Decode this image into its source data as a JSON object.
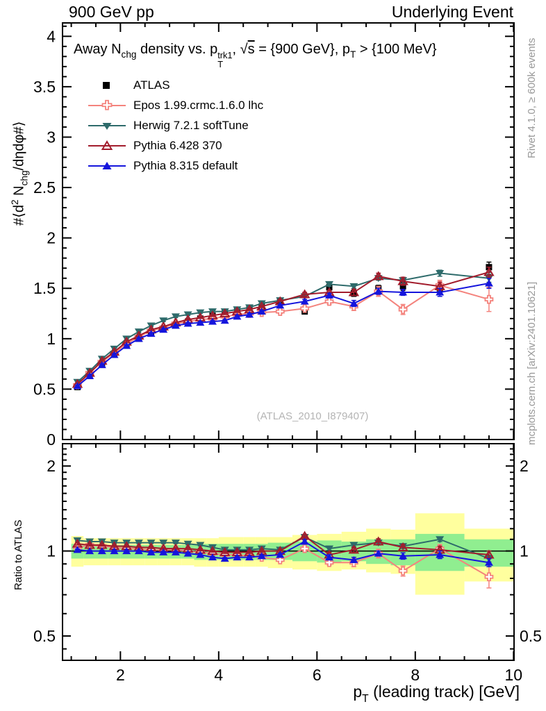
{
  "header": {
    "left": "900 GeV pp",
    "right": "Underlying Event"
  },
  "right_margin": {
    "rivet": "Rivet 4.1.0, ≥ 600k events",
    "mcplots": "mcplots.cern.ch [arXiv:2401.10621]"
  },
  "watermark": "(ATLAS_2010_I879407)",
  "ratio_axis_label": "Ratio to ATLAS",
  "title_segments": [
    {
      "t": "Away N"
    },
    {
      "sub": "chg"
    },
    {
      "t": " density vs. p"
    },
    {
      "stack": [
        "trk1",
        "T"
      ]
    },
    {
      "t": ", "
    },
    {
      "t": "√"
    },
    {
      "over": "s"
    },
    {
      "t": " = {900 GeV}, p"
    },
    {
      "sub": "T"
    },
    {
      "t": " > {100 MeV}"
    }
  ],
  "y_axis_segments": [
    {
      "t": "#⟨d"
    },
    {
      "sup": "2"
    },
    {
      "t": " N"
    },
    {
      "sub": "chg"
    },
    {
      "t": "/dηdφ#⟩"
    }
  ],
  "x_axis_segments": [
    {
      "t": "p"
    },
    {
      "sub": "T"
    },
    {
      "t": " (leading track) [GeV]"
    }
  ],
  "colors": {
    "frame": "#000000",
    "band_yellow": "#ffff9e",
    "band_green": "#90ee90",
    "watermark_gray": "#b4b4b4",
    "margin_gray": "#999999"
  },
  "chart_data": {
    "type": "line",
    "title": "Away Nchg density vs. pT trk1, sqrt(s) = {900 GeV}, pT > {100 MeV}",
    "xlabel": "pT (leading track) [GeV]",
    "ylabel_main": "#<d2 Nchg/detadphi#>",
    "ylabel_ratio": "Ratio to ATLAS",
    "legend_position": "top-left",
    "axes": {
      "x": {
        "min": 0.822,
        "max": 10.01,
        "majors": [
          2,
          4,
          6,
          8,
          10
        ],
        "minor_step": 0.5
      },
      "y_main": {
        "min": 0,
        "max": 4.133,
        "majors": [
          0,
          0.5,
          1,
          1.5,
          2,
          2.5,
          3,
          3.5,
          4
        ],
        "labels": [
          "0",
          "0.5",
          "1",
          "1.5",
          "2",
          "2.5",
          "3",
          "3.5",
          "4"
        ],
        "minor_step": 0.1
      },
      "y_ratio": {
        "scale": "log",
        "min": 0.41,
        "max": 2.4,
        "majors": [
          0.5,
          1,
          2
        ],
        "labels": [
          "0.5",
          "1",
          "2"
        ],
        "minors": [
          0.45,
          0.6,
          0.7,
          0.8,
          0.9,
          1.1,
          1.2,
          1.3,
          1.4,
          1.5,
          1.6,
          1.7,
          1.8,
          1.9,
          2.1,
          2.2,
          2.3
        ]
      }
    },
    "bin_edges": [
      1.0,
      1.25,
      1.5,
      1.75,
      2.0,
      2.25,
      2.5,
      2.75,
      3.0,
      3.25,
      3.5,
      3.75,
      4.0,
      4.25,
      4.5,
      4.75,
      5.0,
      5.5,
      6.0,
      6.5,
      7.0,
      7.5,
      8.0,
      9.0,
      10.0
    ],
    "x": [
      1.125,
      1.375,
      1.625,
      1.875,
      2.125,
      2.375,
      2.625,
      2.875,
      3.125,
      3.375,
      3.625,
      3.875,
      4.125,
      4.375,
      4.625,
      4.875,
      5.25,
      5.75,
      6.25,
      6.75,
      7.25,
      7.75,
      8.5,
      9.5
    ],
    "bands": {
      "yellow_lo": [
        0.88,
        0.89,
        0.89,
        0.89,
        0.89,
        0.89,
        0.89,
        0.89,
        0.89,
        0.89,
        0.88,
        0.88,
        0.88,
        0.88,
        0.88,
        0.88,
        0.87,
        0.86,
        0.85,
        0.86,
        0.84,
        0.83,
        0.7,
        0.78
      ],
      "yellow_hi": [
        1.13,
        1.11,
        1.11,
        1.11,
        1.11,
        1.11,
        1.11,
        1.11,
        1.11,
        1.11,
        1.11,
        1.11,
        1.12,
        1.12,
        1.12,
        1.12,
        1.12,
        1.14,
        1.15,
        1.17,
        1.2,
        1.19,
        1.36,
        1.2
      ],
      "green_lo": [
        0.94,
        0.94,
        0.94,
        0.94,
        0.94,
        0.94,
        0.94,
        0.94,
        0.94,
        0.94,
        0.93,
        0.93,
        0.93,
        0.93,
        0.93,
        0.93,
        0.93,
        0.92,
        0.91,
        0.92,
        0.9,
        0.89,
        0.85,
        0.88
      ],
      "green_hi": [
        1.06,
        1.05,
        1.05,
        1.05,
        1.05,
        1.05,
        1.05,
        1.05,
        1.05,
        1.05,
        1.06,
        1.06,
        1.06,
        1.06,
        1.06,
        1.06,
        1.07,
        1.08,
        1.09,
        1.08,
        1.1,
        1.1,
        1.15,
        1.1
      ]
    },
    "series": [
      {
        "id": "atlas",
        "label": "ATLAS",
        "color": "#000000",
        "marker": "square-filled",
        "line": false,
        "values": [
          0.52,
          0.63,
          0.74,
          0.84,
          0.93,
          1.0,
          1.06,
          1.1,
          1.14,
          1.17,
          1.2,
          1.23,
          1.26,
          1.28,
          1.3,
          1.32,
          1.37,
          1.27,
          1.51,
          1.45,
          1.5,
          1.52,
          1.5,
          1.71
        ],
        "err": [
          0.02,
          0.02,
          0.02,
          0.02,
          0.02,
          0.02,
          0.02,
          0.02,
          0.02,
          0.02,
          0.02,
          0.02,
          0.02,
          0.02,
          0.02,
          0.02,
          0.02,
          0.02,
          0.03,
          0.03,
          0.03,
          0.04,
          0.04,
          0.05
        ]
      },
      {
        "id": "epos",
        "label": "Epos 1.99.crmc.1.6.0 lhc",
        "color": "#f4837d",
        "marker": "cross-open",
        "line": true,
        "values": [
          0.54,
          0.66,
          0.77,
          0.86,
          0.95,
          1.02,
          1.08,
          1.11,
          1.15,
          1.17,
          1.19,
          1.2,
          1.22,
          1.24,
          1.25,
          1.26,
          1.27,
          1.3,
          1.37,
          1.32,
          1.47,
          1.29,
          1.53,
          1.39
        ],
        "err": [
          0.01,
          0.01,
          0.01,
          0.01,
          0.01,
          0.01,
          0.01,
          0.01,
          0.01,
          0.01,
          0.01,
          0.01,
          0.01,
          0.01,
          0.01,
          0.01,
          0.02,
          0.02,
          0.03,
          0.04,
          0.05,
          0.05,
          0.05,
          0.12
        ],
        "ratio": [
          1.03,
          1.05,
          1.04,
          1.03,
          1.02,
          1.02,
          1.01,
          1.01,
          1.01,
          1.0,
          0.99,
          0.98,
          0.97,
          0.97,
          0.96,
          0.95,
          0.93,
          1.02,
          0.91,
          0.91,
          0.98,
          0.85,
          1.02,
          0.81
        ],
        "ratio_err": [
          0.01,
          0.01,
          0.01,
          0.01,
          0.01,
          0.01,
          0.01,
          0.01,
          0.01,
          0.01,
          0.01,
          0.01,
          0.01,
          0.01,
          0.01,
          0.01,
          0.015,
          0.02,
          0.02,
          0.03,
          0.035,
          0.035,
          0.035,
          0.07
        ]
      },
      {
        "id": "herwig",
        "label": "Herwig 7.2.1 softTune",
        "color": "#2e6b6b",
        "marker": "triangle-down-filled",
        "line": true,
        "values": [
          0.57,
          0.68,
          0.8,
          0.9,
          1.0,
          1.07,
          1.13,
          1.18,
          1.22,
          1.24,
          1.26,
          1.27,
          1.27,
          1.29,
          1.31,
          1.35,
          1.38,
          1.42,
          1.54,
          1.52,
          1.6,
          1.58,
          1.65,
          1.6
        ],
        "err": [
          0.01,
          0.01,
          0.01,
          0.01,
          0.01,
          0.01,
          0.01,
          0.01,
          0.01,
          0.01,
          0.01,
          0.01,
          0.01,
          0.01,
          0.01,
          0.01,
          0.01,
          0.01,
          0.02,
          0.02,
          0.02,
          0.03,
          0.03,
          0.04
        ],
        "ratio": [
          1.09,
          1.08,
          1.08,
          1.07,
          1.07,
          1.07,
          1.07,
          1.07,
          1.07,
          1.06,
          1.05,
          1.03,
          1.01,
          1.01,
          1.01,
          1.02,
          1.01,
          1.12,
          1.02,
          1.05,
          1.07,
          1.04,
          1.1,
          0.94
        ],
        "ratio_err": [
          0.008,
          0.008,
          0.008,
          0.008,
          0.008,
          0.008,
          0.008,
          0.008,
          0.008,
          0.008,
          0.008,
          0.008,
          0.008,
          0.008,
          0.008,
          0.008,
          0.01,
          0.015,
          0.015,
          0.015,
          0.02,
          0.02,
          0.02,
          0.025
        ]
      },
      {
        "id": "pythia6",
        "label": "Pythia 6.428 370",
        "color": "#a21c2c",
        "marker": "triangle-up-open",
        "line": true,
        "values": [
          0.55,
          0.66,
          0.78,
          0.87,
          0.97,
          1.03,
          1.09,
          1.12,
          1.16,
          1.19,
          1.21,
          1.23,
          1.25,
          1.27,
          1.29,
          1.32,
          1.37,
          1.44,
          1.46,
          1.46,
          1.62,
          1.57,
          1.52,
          1.66
        ],
        "err": [
          0.01,
          0.01,
          0.01,
          0.01,
          0.01,
          0.01,
          0.01,
          0.01,
          0.01,
          0.01,
          0.01,
          0.01,
          0.01,
          0.01,
          0.01,
          0.01,
          0.02,
          0.02,
          0.02,
          0.03,
          0.03,
          0.04,
          0.04,
          0.05
        ],
        "ratio": [
          1.06,
          1.05,
          1.05,
          1.04,
          1.04,
          1.03,
          1.03,
          1.02,
          1.02,
          1.02,
          1.01,
          1.0,
          0.99,
          0.99,
          0.99,
          1.0,
          1.0,
          1.13,
          0.97,
          1.01,
          1.08,
          1.03,
          1.01,
          0.97
        ],
        "ratio_err": [
          0.01,
          0.01,
          0.01,
          0.01,
          0.01,
          0.01,
          0.01,
          0.01,
          0.01,
          0.01,
          0.01,
          0.01,
          0.01,
          0.01,
          0.01,
          0.01,
          0.012,
          0.015,
          0.02,
          0.02,
          0.025,
          0.025,
          0.03,
          0.03
        ]
      },
      {
        "id": "pythia8",
        "label": "Pythia 8.315 default",
        "color": "#1515dc",
        "marker": "triangle-up-filled",
        "line": true,
        "values": [
          0.53,
          0.63,
          0.74,
          0.84,
          0.93,
          1.0,
          1.05,
          1.09,
          1.13,
          1.15,
          1.16,
          1.17,
          1.18,
          1.22,
          1.24,
          1.27,
          1.33,
          1.37,
          1.43,
          1.35,
          1.47,
          1.46,
          1.46,
          1.55
        ],
        "err": [
          0.01,
          0.01,
          0.01,
          0.01,
          0.01,
          0.01,
          0.01,
          0.01,
          0.01,
          0.01,
          0.01,
          0.01,
          0.01,
          0.01,
          0.01,
          0.01,
          0.01,
          0.02,
          0.02,
          0.03,
          0.03,
          0.03,
          0.04,
          0.05
        ],
        "ratio": [
          1.01,
          1.0,
          1.0,
          1.0,
          1.0,
          1.0,
          0.99,
          0.99,
          0.99,
          0.98,
          0.97,
          0.95,
          0.94,
          0.95,
          0.95,
          0.96,
          0.97,
          1.08,
          0.95,
          0.93,
          0.98,
          0.96,
          0.97,
          0.91
        ],
        "ratio_err": [
          0.008,
          0.008,
          0.008,
          0.008,
          0.008,
          0.008,
          0.008,
          0.008,
          0.008,
          0.008,
          0.008,
          0.008,
          0.008,
          0.008,
          0.008,
          0.008,
          0.01,
          0.015,
          0.02,
          0.02,
          0.02,
          0.025,
          0.03,
          0.03
        ]
      }
    ]
  }
}
